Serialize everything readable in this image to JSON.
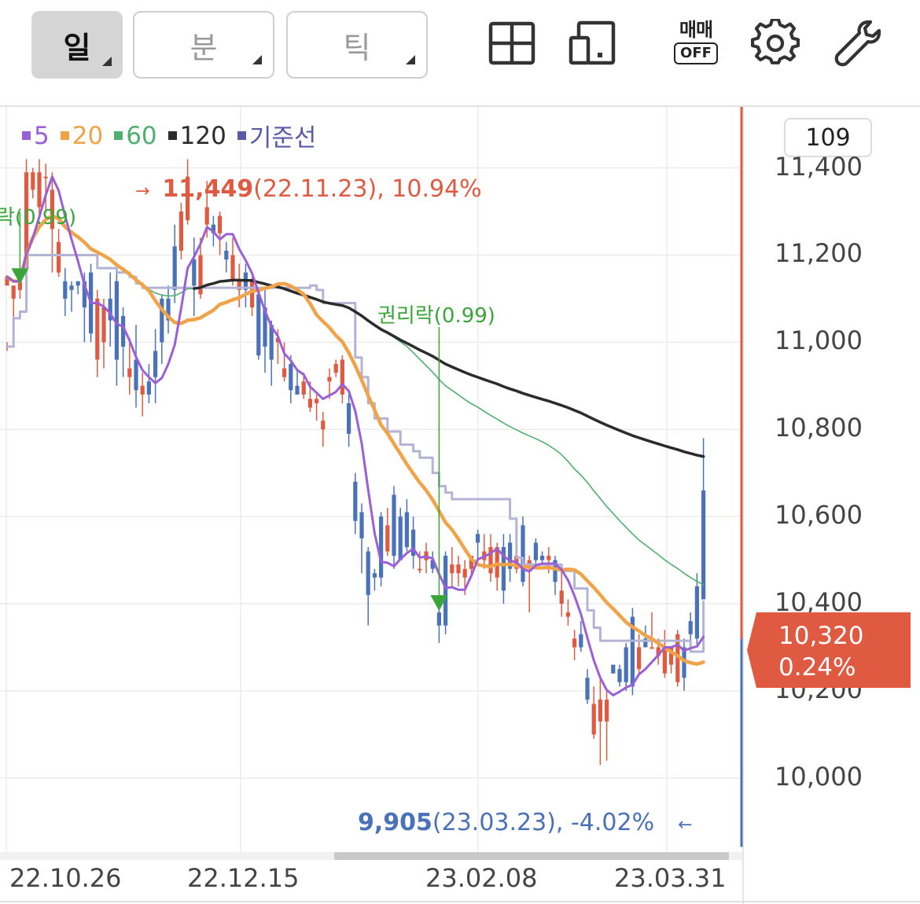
{
  "toolbar": {
    "period_day": "일",
    "period_minute": "분",
    "period_tick": "틱",
    "layout_icon": "grid-layout-icon",
    "split_icon": "split-screen-icon",
    "trade_toggle_top": "매매",
    "trade_toggle_bottom": "OFF",
    "settings_icon": "gear-icon",
    "tools_icon": "wrench-icon"
  },
  "colors": {
    "up": "#e05a41",
    "down": "#4a72b8",
    "ma5": "#9b5fd6",
    "ma20": "#f0a347",
    "ma60": "#4faf6f",
    "ma120": "#2b2b2b",
    "baseline": "#b3b3d6",
    "marker": "#3aa63a",
    "high_text": "#e05a41",
    "low_text": "#4a72b8"
  },
  "legend": [
    {
      "label": "5",
      "color": "#9b5fd6"
    },
    {
      "label": "20",
      "color": "#f0a347"
    },
    {
      "label": "60",
      "color": "#4faf6f"
    },
    {
      "label": "120",
      "color": "#2b2b2b"
    },
    {
      "label": "기준선",
      "color": "#5a5aa8"
    }
  ],
  "count_box": "109",
  "chart_data": {
    "type": "candlestick",
    "ylim": [
      9830,
      11540
    ],
    "y_ticks": [
      "11,400",
      "11,200",
      "11,000",
      "10,800",
      "10,600",
      "10,400",
      "10,200",
      "10,000"
    ],
    "y_tick_values": [
      11400,
      11200,
      11000,
      10800,
      10600,
      10400,
      10200,
      10000
    ],
    "x_tick_labels": [
      "22.10.26",
      "22.12.15",
      "23.02.08",
      "23.03.31"
    ],
    "current_price": "10,320",
    "current_change": "0.24%",
    "high_annotation": {
      "arrow": "→",
      "price": "11,449",
      "detail": "(22.11.23), 10.94%"
    },
    "low_annotation": {
      "arrow": "←",
      "price": "9,905",
      "detail": "(23.03.23), -4.02%"
    },
    "events": [
      {
        "label": "락(0.99)",
        "price": 11130
      },
      {
        "label": "권리락(0.99)",
        "price": 10380
      }
    ],
    "candles": [
      [
        11130,
        11150,
        11000,
        10980
      ],
      [
        11100,
        11130,
        11130,
        10990
      ],
      [
        11120,
        11140,
        11160,
        11100
      ],
      [
        11170,
        11390,
        11420,
        11140
      ],
      [
        11350,
        11390,
        11400,
        11330
      ],
      [
        11310,
        11390,
        11420,
        11290
      ],
      [
        11380,
        11380,
        11410,
        11300
      ],
      [
        11260,
        11350,
        11390,
        11160
      ],
      [
        11160,
        11230,
        11260,
        11150
      ],
      [
        11140,
        11100,
        11170,
        11060
      ],
      [
        11130,
        11120,
        11140,
        11070
      ],
      [
        11140,
        11130,
        11140,
        11110
      ],
      [
        11140,
        11080,
        11160,
        11000
      ],
      [
        11160,
        11020,
        11180,
        11000
      ],
      [
        10960,
        11100,
        11120,
        10920
      ],
      [
        11000,
        11080,
        11100,
        10940
      ],
      [
        11100,
        11050,
        11160,
        10990
      ],
      [
        11140,
        10960,
        11170,
        10900
      ],
      [
        11060,
        10990,
        11080,
        10920
      ],
      [
        10920,
        10940,
        11010,
        10880
      ],
      [
        10960,
        10890,
        11040,
        10850
      ],
      [
        10880,
        10900,
        10930,
        10830
      ],
      [
        10910,
        10880,
        10950,
        10860
      ],
      [
        10980,
        10920,
        11030,
        10860
      ],
      [
        11100,
        11000,
        11110,
        10950
      ],
      [
        11100,
        11050,
        11130,
        11020
      ],
      [
        11220,
        11120,
        11270,
        11090
      ],
      [
        11210,
        11300,
        11320,
        11190
      ],
      [
        11280,
        11380,
        11420,
        11270
      ],
      [
        11190,
        11130,
        11240,
        11060
      ],
      [
        11110,
        11200,
        11240,
        11100
      ],
      [
        11270,
        11310,
        11370,
        11240
      ],
      [
        11270,
        11250,
        11290,
        11220
      ],
      [
        11250,
        11290,
        11300,
        11200
      ],
      [
        11210,
        11190,
        11230,
        11160
      ],
      [
        11140,
        11200,
        11240,
        11130
      ],
      [
        11120,
        11140,
        11180,
        11080
      ],
      [
        11160,
        11120,
        11180,
        11080
      ],
      [
        11080,
        11140,
        11150,
        11060
      ],
      [
        11110,
        10970,
        11120,
        10960
      ],
      [
        11080,
        10990,
        11120,
        10930
      ],
      [
        11040,
        10960,
        11050,
        10900
      ],
      [
        11000,
        11010,
        11030,
        10950
      ],
      [
        10920,
        10940,
        11000,
        10910
      ],
      [
        10950,
        10890,
        10970,
        10860
      ],
      [
        10900,
        10880,
        10940,
        10880
      ],
      [
        10880,
        10910,
        10930,
        10870
      ],
      [
        10850,
        10870,
        10910,
        10840
      ],
      [
        10860,
        10870,
        10880,
        10820
      ],
      [
        10800,
        10820,
        10840,
        10760
      ],
      [
        10910,
        10920,
        10940,
        10870
      ],
      [
        10930,
        10950,
        10960,
        10920
      ],
      [
        10880,
        10960,
        10970,
        10860
      ],
      [
        10860,
        10790,
        10880,
        10760
      ],
      [
        10680,
        10590,
        10700,
        10560
      ],
      [
        10610,
        10550,
        10630,
        10470
      ],
      [
        10520,
        10420,
        10530,
        10350
      ],
      [
        10470,
        10460,
        10480,
        10430
      ],
      [
        10600,
        10460,
        10610,
        10440
      ],
      [
        10520,
        10580,
        10620,
        10510
      ],
      [
        10650,
        10510,
        10670,
        10480
      ],
      [
        10600,
        10500,
        10620,
        10500
      ],
      [
        10610,
        10530,
        10640,
        10520
      ],
      [
        10570,
        10510,
        10600,
        10480
      ],
      [
        10480,
        10480,
        10520,
        10470
      ],
      [
        10500,
        10520,
        10540,
        10470
      ],
      [
        10500,
        10480,
        10520,
        10470
      ],
      [
        10380,
        10350,
        10400,
        10310
      ],
      [
        10510,
        10350,
        10520,
        10330
      ],
      [
        10470,
        10490,
        10530,
        10440
      ],
      [
        10470,
        10490,
        10510,
        10440
      ],
      [
        10460,
        10480,
        10500,
        10420
      ],
      [
        10480,
        10510,
        10510,
        10460
      ],
      [
        10560,
        10540,
        10570,
        10500
      ],
      [
        10500,
        10520,
        10560,
        10480
      ],
      [
        10470,
        10530,
        10560,
        10450
      ],
      [
        10460,
        10530,
        10540,
        10430
      ],
      [
        10530,
        10430,
        10560,
        10400
      ],
      [
        10540,
        10480,
        10560,
        10450
      ],
      [
        10480,
        10510,
        10510,
        10470
      ],
      [
        10580,
        10450,
        10600,
        10440
      ],
      [
        10480,
        10500,
        10510,
        10380
      ],
      [
        10540,
        10500,
        10550,
        10480
      ],
      [
        10510,
        10500,
        10520,
        10490
      ],
      [
        10500,
        10510,
        10530,
        10470
      ],
      [
        10500,
        10450,
        10510,
        10420
      ],
      [
        10400,
        10430,
        10480,
        10370
      ],
      [
        10370,
        10380,
        10410,
        10350
      ],
      [
        10300,
        10320,
        10340,
        10270
      ],
      [
        10330,
        10300,
        10360,
        10290
      ],
      [
        10230,
        10180,
        10250,
        10170
      ],
      [
        10100,
        10170,
        10210,
        10090
      ],
      [
        10130,
        10180,
        10230,
        10030
      ],
      [
        10130,
        10180,
        10200,
        10040
      ],
      [
        10260,
        10240,
        10260,
        10240
      ],
      [
        10250,
        10220,
        10260,
        10210
      ],
      [
        10300,
        10220,
        10310,
        10200
      ],
      [
        10370,
        10210,
        10390,
        10190
      ],
      [
        10250,
        10300,
        10330,
        10240
      ],
      [
        10320,
        10300,
        10350,
        10300
      ],
      [
        10300,
        10300,
        10380,
        10300
      ],
      [
        10280,
        10300,
        10320,
        10260
      ],
      [
        10240,
        10300,
        10340,
        10230
      ],
      [
        10260,
        10300,
        10300,
        10240
      ],
      [
        10220,
        10330,
        10340,
        10210
      ],
      [
        10300,
        10230,
        10320,
        10200
      ],
      [
        10360,
        10330,
        10380,
        10310
      ],
      [
        10440,
        10320,
        10470,
        10300
      ],
      [
        10660,
        10410,
        10780,
        10410
      ]
    ]
  }
}
